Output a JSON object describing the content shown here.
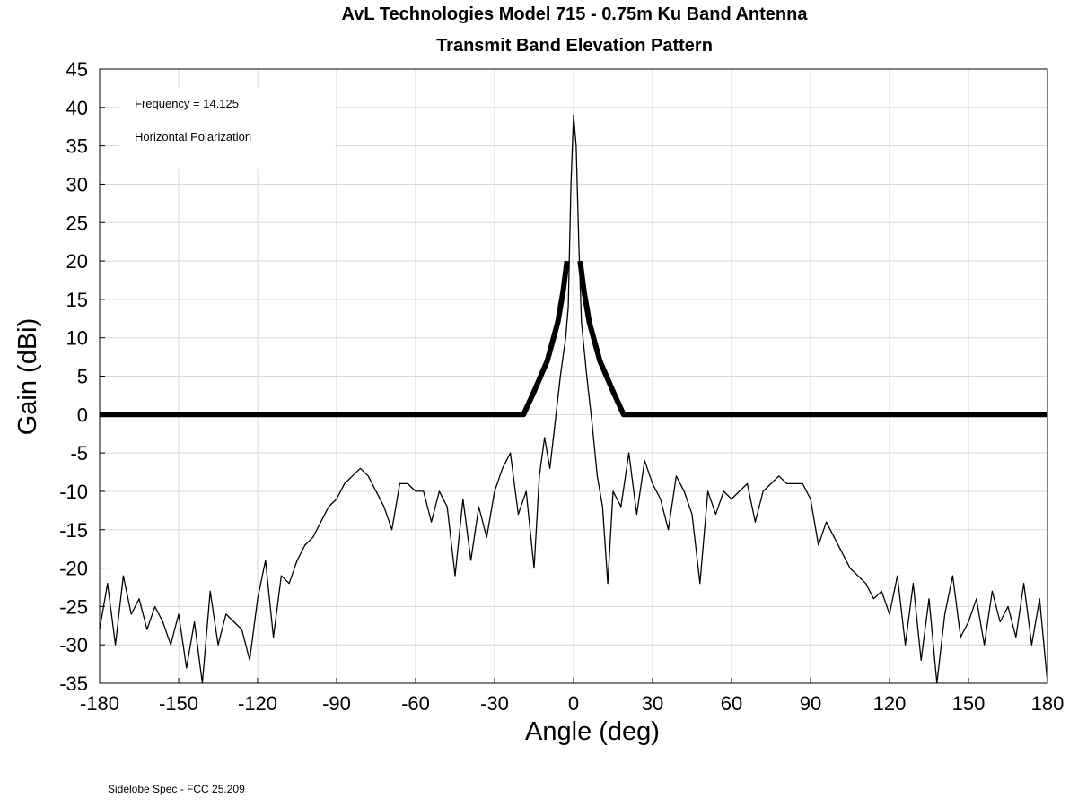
{
  "chart_data": {
    "type": "line",
    "title": "AvL Technologies Model 715 - 0.75m Ku Band Antenna",
    "subtitle": "Transmit Band Elevation Pattern",
    "x_label": "Angle (deg)",
    "y_label": "Gain (dBi)",
    "annotations": [
      "Frequency = 14.125",
      "Horizontal Polarization"
    ],
    "footnote": "Sidelobe Spec - FCC 25.209",
    "xlim": [
      -180,
      180
    ],
    "ylim": [
      -35,
      45
    ],
    "xticks": [
      -180,
      -150,
      -120,
      -90,
      -60,
      -30,
      0,
      30,
      60,
      90,
      120,
      150,
      180
    ],
    "yticks": [
      -35,
      -30,
      -25,
      -20,
      -15,
      -10,
      -5,
      0,
      5,
      10,
      15,
      20,
      25,
      30,
      35,
      40,
      45
    ],
    "grid": true,
    "series": [
      {
        "color": "#000000",
        "width": 1.3,
        "x": [
          -180,
          -177,
          -174,
          -171,
          -168,
          -165,
          -162,
          -159,
          -156,
          -153,
          -150,
          -147,
          -144,
          -141,
          -138,
          -135,
          -132,
          -129,
          -126,
          -123,
          -120,
          -117,
          -114,
          -111,
          -108,
          -105,
          -102,
          -99,
          -96,
          -93,
          -90,
          -87,
          -84,
          -81,
          -78,
          -75,
          -72,
          -69,
          -66,
          -63,
          -60,
          -57,
          -54,
          -51,
          -48,
          -45,
          -42,
          -39,
          -36,
          -33,
          -30,
          -27,
          -24,
          -21,
          -18,
          -15,
          -13,
          -11,
          -9,
          -7,
          -5,
          -3,
          -2,
          -1,
          0,
          1,
          2,
          3,
          5,
          7,
          9,
          11,
          13,
          15,
          18,
          21,
          24,
          27,
          30,
          33,
          36,
          39,
          42,
          45,
          48,
          51,
          54,
          57,
          60,
          63,
          66,
          69,
          72,
          75,
          78,
          81,
          84,
          87,
          90,
          93,
          96,
          99,
          102,
          105,
          108,
          111,
          114,
          117,
          120,
          123,
          126,
          129,
          132,
          135,
          138,
          141,
          144,
          147,
          150,
          153,
          156,
          159,
          162,
          165,
          168,
          171,
          174,
          177,
          180
        ],
        "values": [
          -28,
          -22,
          -30,
          -21,
          -26,
          -24,
          -28,
          -25,
          -27,
          -30,
          -26,
          -33,
          -27,
          -35,
          -23,
          -30,
          -26,
          -27,
          -28,
          -32,
          -24,
          -19,
          -29,
          -21,
          -22,
          -19,
          -17,
          -16,
          -14,
          -12,
          -11,
          -9,
          -8,
          -7,
          -8,
          -10,
          -12,
          -15,
          -9,
          -9,
          -10,
          -10,
          -14,
          -10,
          -12,
          -21,
          -11,
          -19,
          -12,
          -16,
          -10,
          -7,
          -5,
          -13,
          -10,
          -20,
          -8,
          -3,
          -7,
          -1,
          5,
          10,
          14,
          30,
          39,
          35,
          22,
          12,
          5,
          -1,
          -8,
          -12,
          -22,
          -10,
          -12,
          -5,
          -13,
          -6,
          -9,
          -11,
          -15,
          -8,
          -10,
          -13,
          -22,
          -10,
          -13,
          -10,
          -11,
          -10,
          -9,
          -14,
          -10,
          -9,
          -8,
          -9,
          -9,
          -9,
          -11,
          -17,
          -14,
          -16,
          -18,
          -20,
          -21,
          -22,
          -24,
          -23,
          -26,
          -21,
          -30,
          -22,
          -32,
          -24,
          -35,
          -26,
          -21,
          -29,
          -27,
          -24,
          -30,
          -23,
          -27,
          -25,
          -29,
          -22,
          -30,
          -24,
          -35
        ]
      },
      {
        "color": "#000000",
        "width": 6,
        "x": [
          -180,
          -19,
          -15,
          -10,
          -6,
          -4,
          -2.5,
          0,
          2.5,
          4,
          6,
          10,
          15,
          19,
          180
        ],
        "values": [
          0,
          0,
          3,
          7,
          12,
          16,
          20,
          null,
          20,
          16,
          12,
          7,
          3,
          0,
          0
        ]
      }
    ]
  }
}
